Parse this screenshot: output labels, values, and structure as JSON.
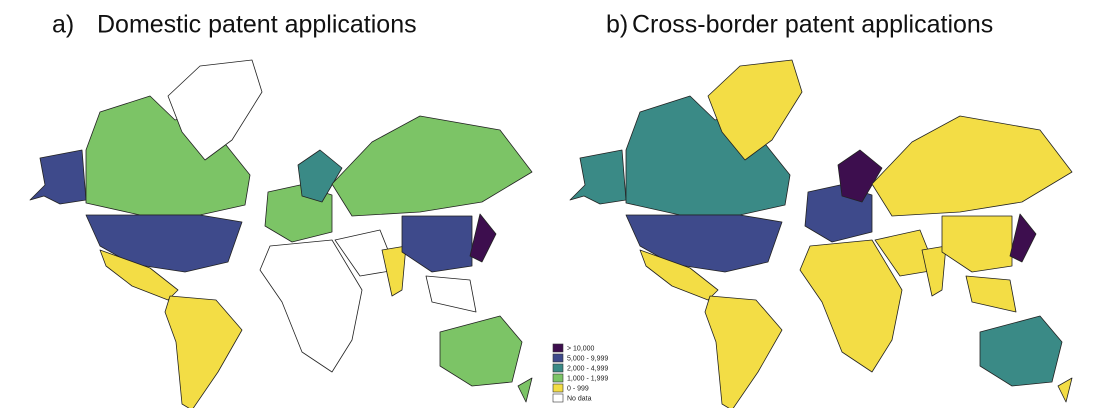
{
  "figure": {
    "panels": [
      {
        "label": "a)",
        "title": "Domestic patent applications"
      },
      {
        "label": "b)",
        "title": "Cross-border patent applications"
      }
    ],
    "legend": [
      {
        "label": "> 10,000",
        "color": "#3d0e4e"
      },
      {
        "label": "5,000 - 9,999",
        "color": "#3e4a8b"
      },
      {
        "label": "2,000 - 4,999",
        "color": "#3a8a86"
      },
      {
        "label": "1,000 - 1,999",
        "color": "#7cc466"
      },
      {
        "label": "0 - 999",
        "color": "#f3dd45"
      },
      {
        "label": "No data",
        "color": "#ffffff"
      }
    ]
  }
}
